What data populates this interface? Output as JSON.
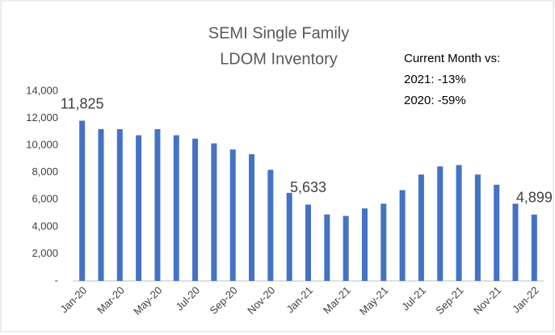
{
  "chart_data": {
    "type": "bar",
    "title_lines": [
      "SEMI Single Family",
      "LDOM Inventory"
    ],
    "annotations": [
      "Current Month vs:",
      "2021:  -13%",
      "2020:  -59%"
    ],
    "categories": [
      "Jan-20",
      null,
      "Mar-20",
      null,
      "May-20",
      null,
      "Jul-20",
      null,
      "Sep-20",
      null,
      "Nov-20",
      null,
      "Jan-21",
      null,
      "Mar-21",
      null,
      "May-21",
      null,
      "Jul-21",
      null,
      "Sep-21",
      null,
      "Nov-21",
      null,
      "Jan-22"
    ],
    "values": [
      11825,
      11200,
      11200,
      10750,
      11200,
      10750,
      10500,
      10150,
      9700,
      9350,
      8200,
      6500,
      5633,
      4900,
      4800,
      5350,
      5700,
      6700,
      7850,
      8450,
      8550,
      7850,
      7100,
      5700,
      4899
    ],
    "value_labels": [
      "11,825",
      null,
      null,
      null,
      null,
      null,
      null,
      null,
      null,
      null,
      null,
      null,
      "5,633",
      null,
      null,
      null,
      null,
      null,
      null,
      null,
      null,
      null,
      null,
      null,
      "4,899"
    ],
    "color": "#4472c4",
    "ylim": [
      0,
      14000
    ],
    "yticks": [
      {
        "value": 0,
        "label": "-"
      },
      {
        "value": 2000,
        "label": "2,000"
      },
      {
        "value": 4000,
        "label": "4,000"
      },
      {
        "value": 6000,
        "label": "6,000"
      },
      {
        "value": 8000,
        "label": "8,000"
      },
      {
        "value": 10000,
        "label": "10,000"
      },
      {
        "value": 12000,
        "label": "12,000"
      },
      {
        "value": 14000,
        "label": "14,000"
      }
    ],
    "grid": false
  }
}
